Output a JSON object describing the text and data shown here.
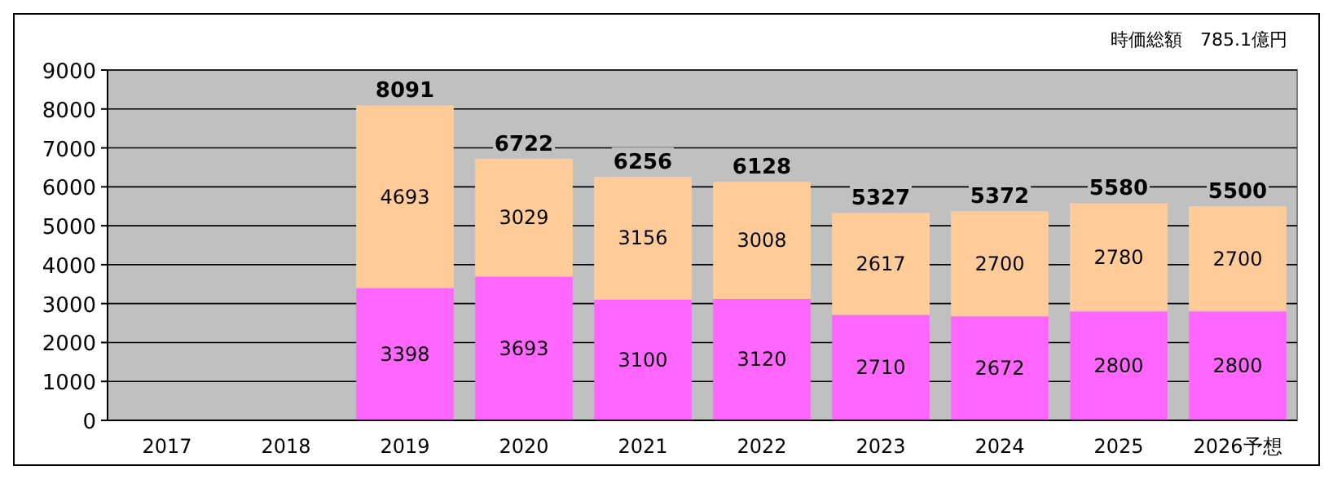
{
  "chart_data": {
    "type": "bar",
    "stacked": true,
    "categories": [
      "2017",
      "2018",
      "2019",
      "2020",
      "2021",
      "2022",
      "2023",
      "2024",
      "2025",
      "2026予想"
    ],
    "series": [
      {
        "color": "#ff66ff",
        "values": [
          null,
          null,
          3398,
          3693,
          3100,
          3120,
          2710,
          2672,
          2800,
          2800
        ]
      },
      {
        "color": "#ffcc99",
        "values": [
          null,
          null,
          4693,
          3029,
          3156,
          3008,
          2617,
          2700,
          2780,
          2700
        ]
      }
    ],
    "totals": [
      null,
      null,
      "8091",
      "6722",
      "6256",
      "6128",
      "5327",
      "5372",
      "5580",
      "5500"
    ],
    "data_labels": true,
    "ylim": [
      0,
      9000
    ],
    "yticks": [
      0,
      1000,
      2000,
      3000,
      4000,
      5000,
      6000,
      7000,
      8000,
      9000
    ],
    "grid": "y",
    "annotations": [
      "時価総額　785.1億円"
    ]
  }
}
